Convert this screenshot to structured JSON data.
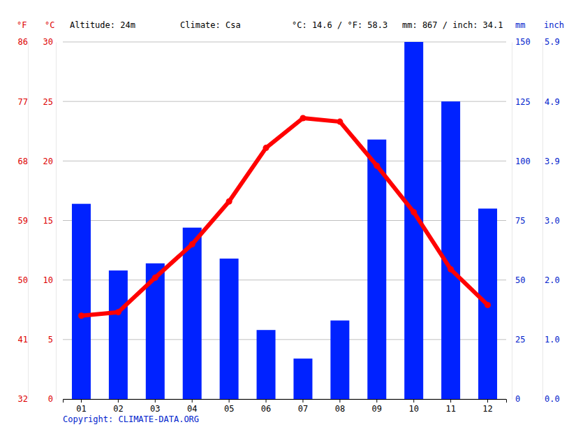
{
  "chart_data": {
    "type": "bar",
    "annotations": [
      "Altitude: 24m",
      "Climate: Csa",
      "°C: 14.6 / °F: 58.3",
      "mm: 867 / inch: 34.1"
    ],
    "source": "Copyright: CLIMATE-DATA.ORG",
    "y_label": "°C",
    "y2_label": "mm",
    "y3_label": "°F",
    "y4_label": "inch",
    "categories": [
      "01",
      "02",
      "03",
      "04",
      "05",
      "06",
      "07",
      "08",
      "09",
      "10",
      "11",
      "12"
    ],
    "series": [
      {
        "type": "bar",
        "axis": "y2",
        "color": "#0022ff",
        "values": [
          82,
          54,
          57,
          72,
          59,
          29,
          17,
          33,
          109,
          150,
          125,
          80
        ]
      },
      {
        "type": "line",
        "color": "#ff0000",
        "marker": "circle",
        "values": [
          7.0,
          7.3,
          10.2,
          13.0,
          16.6,
          21.1,
          23.6,
          23.3,
          19.6,
          15.7,
          10.9,
          7.9
        ]
      }
    ],
    "ylim": [
      0,
      30
    ],
    "yticks": [
      0,
      5,
      10,
      15,
      20,
      25,
      30
    ],
    "y2lim": [
      0,
      150
    ],
    "y2ticks": [
      0,
      25,
      50,
      75,
      100,
      125,
      150
    ],
    "y3lim": [
      32,
      86
    ],
    "y3ticks": [
      32,
      41,
      50,
      59,
      68,
      77,
      86
    ],
    "y4lim": [
      0,
      5.906
    ],
    "y4ticks": [
      {
        "value": 0,
        "label": "0.0"
      },
      {
        "value": 0.984,
        "label": "1.0"
      },
      {
        "value": 1.969,
        "label": "2.0"
      },
      {
        "value": 2.953,
        "label": "3.0"
      },
      {
        "value": 3.937,
        "label": "3.9"
      },
      {
        "value": 4.921,
        "label": "4.9"
      },
      {
        "value": 5.906,
        "label": "5.9"
      }
    ],
    "grid": true
  }
}
